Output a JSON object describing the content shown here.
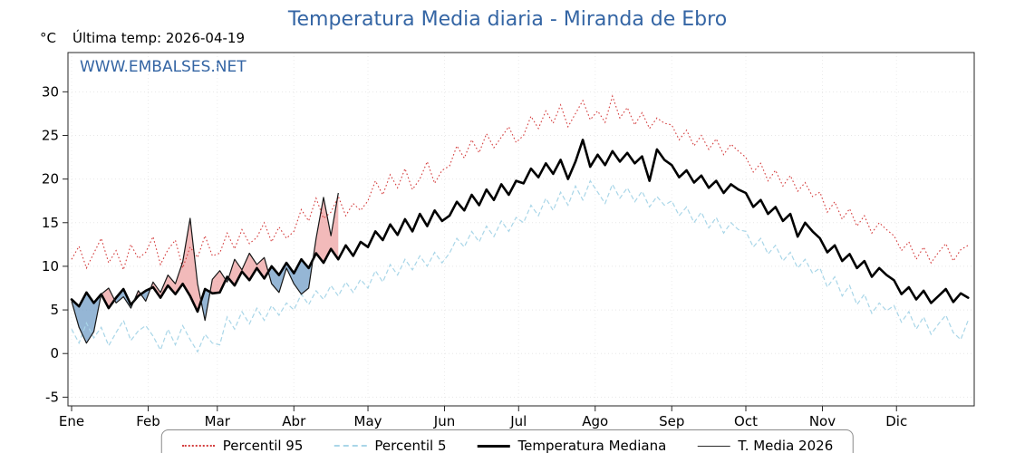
{
  "header": {
    "title": "Temperatura Media diaria - Miranda de Ebro",
    "y_unit": "°C",
    "last_temp_label": "Última temp: 2026-04-19",
    "watermark": "WWW.EMBALSES.NET"
  },
  "legend": {
    "items": [
      {
        "label": "Percentil 95",
        "style": "leg-dotted-red"
      },
      {
        "label": "Percentil 5",
        "style": "leg-dashed-blue"
      },
      {
        "label": "Temperatura Mediana",
        "style": "leg-solid-thick"
      },
      {
        "label": "T. Media 2026",
        "style": "leg-solid-thin"
      }
    ]
  },
  "chart_data": {
    "type": "line",
    "title": "Temperatura Media diaria - Miranda de Ebro",
    "xlabel": "",
    "ylabel": "°C",
    "ylim": [
      -6,
      34.5
    ],
    "yticks": [
      -5,
      0,
      5,
      10,
      15,
      20,
      25,
      30
    ],
    "x_months": [
      "Ene",
      "Feb",
      "Mar",
      "Abr",
      "May",
      "Jun",
      "Jul",
      "Ago",
      "Sep",
      "Oct",
      "Nov",
      "Dic"
    ],
    "month_start_days": [
      1,
      32,
      60,
      91,
      121,
      152,
      182,
      213,
      244,
      274,
      305,
      335
    ],
    "sample_step_days": 3,
    "grid": true,
    "legend_position": "bottom",
    "colors": {
      "p95": "#d43d3d",
      "p5": "#a9d6e8",
      "median": "#000000",
      "t2026": "#161616",
      "fill_above": "#e98c8c",
      "fill_below": "#5c8fbe",
      "title_blue": "#3465a4"
    },
    "series": [
      {
        "name": "Percentil 95",
        "style": "dotted",
        "values": [
          10.8,
          12.3,
          9.8,
          11.5,
          13.2,
          10.4,
          11.8,
          9.6,
          12.5,
          10.9,
          11.6,
          13.4,
          10.2,
          11.9,
          13.0,
          9.8,
          12.2,
          11.0,
          13.5,
          11.2,
          11.5,
          13.8,
          12.0,
          14.2,
          12.6,
          13.3,
          15.0,
          12.8,
          14.5,
          13.2,
          14.0,
          16.5,
          15.2,
          17.8,
          15.5,
          16.2,
          18.0,
          15.8,
          17.2,
          16.4,
          17.5,
          19.8,
          18.2,
          20.5,
          19.0,
          21.2,
          18.8,
          20.0,
          22.0,
          19.5,
          21.0,
          21.5,
          23.8,
          22.4,
          24.5,
          23.0,
          25.2,
          23.6,
          24.8,
          26.0,
          24.2,
          25.0,
          27.2,
          25.8,
          27.8,
          26.4,
          28.5,
          26.0,
          27.5,
          29.0,
          26.8,
          27.8,
          26.5,
          29.5,
          27.0,
          28.2,
          26.2,
          27.6,
          25.8,
          27.0,
          26.4,
          26.2,
          24.5,
          25.6,
          23.8,
          25.0,
          23.4,
          24.6,
          22.8,
          24.0,
          23.2,
          22.5,
          20.8,
          21.8,
          19.8,
          21.0,
          19.2,
          20.4,
          18.6,
          19.6,
          18.0,
          18.5,
          16.2,
          17.4,
          15.4,
          16.6,
          14.6,
          15.8,
          13.8,
          15.0,
          14.2,
          13.5,
          11.8,
          12.8,
          10.8,
          12.2,
          10.4,
          11.6,
          12.6,
          10.6,
          11.9,
          12.4
        ]
      },
      {
        "name": "Percentil 5",
        "style": "dashed",
        "values": [
          2.8,
          1.2,
          3.5,
          1.8,
          3.0,
          0.9,
          2.4,
          3.8,
          1.5,
          2.6,
          3.2,
          2.0,
          0.4,
          2.8,
          1.0,
          3.2,
          1.6,
          0.2,
          2.2,
          1.2,
          1.0,
          4.2,
          2.8,
          4.8,
          3.4,
          5.2,
          3.8,
          5.5,
          4.4,
          5.8,
          5.0,
          6.8,
          5.6,
          7.2,
          6.2,
          7.8,
          6.6,
          8.2,
          7.0,
          8.5,
          7.5,
          9.5,
          8.2,
          10.2,
          9.0,
          10.8,
          9.6,
          11.2,
          10.0,
          11.6,
          10.4,
          11.5,
          13.2,
          12.2,
          14.0,
          12.8,
          14.6,
          13.4,
          15.2,
          14.0,
          15.6,
          15.0,
          17.0,
          15.8,
          17.8,
          16.4,
          18.5,
          17.0,
          19.2,
          17.6,
          19.8,
          18.5,
          17.2,
          19.4,
          17.8,
          19.0,
          17.4,
          18.6,
          16.8,
          18.0,
          17.0,
          17.5,
          15.8,
          16.8,
          15.0,
          16.2,
          14.4,
          15.6,
          13.8,
          15.0,
          14.2,
          14.0,
          12.2,
          13.2,
          11.4,
          12.4,
          10.6,
          11.6,
          9.8,
          10.8,
          9.2,
          9.8,
          7.6,
          8.8,
          6.6,
          7.8,
          5.6,
          6.8,
          4.6,
          5.8,
          4.9,
          5.5,
          3.6,
          4.8,
          2.8,
          4.2,
          2.2,
          3.4,
          4.4,
          2.4,
          1.6,
          3.8
        ]
      },
      {
        "name": "Temperatura Mediana",
        "style": "solid-thick",
        "values": [
          6.2,
          5.4,
          7.0,
          5.8,
          6.8,
          5.2,
          6.4,
          7.4,
          5.6,
          6.6,
          7.2,
          7.6,
          6.4,
          7.8,
          6.8,
          8.0,
          6.6,
          4.8,
          7.4,
          6.9,
          7.0,
          8.8,
          7.8,
          9.4,
          8.4,
          9.8,
          8.6,
          10.0,
          9.0,
          10.4,
          9.2,
          10.8,
          9.8,
          11.5,
          10.4,
          12.0,
          10.8,
          12.4,
          11.2,
          12.8,
          12.2,
          14.0,
          13.0,
          14.8,
          13.6,
          15.4,
          14.0,
          16.0,
          14.6,
          16.4,
          15.2,
          15.8,
          17.4,
          16.4,
          18.2,
          17.0,
          18.8,
          17.6,
          19.4,
          18.2,
          19.8,
          19.5,
          21.2,
          20.2,
          21.8,
          20.6,
          22.2,
          20.0,
          22.0,
          24.5,
          21.4,
          22.8,
          21.6,
          23.2,
          22.0,
          23.0,
          21.8,
          22.6,
          19.8,
          23.4,
          22.2,
          21.6,
          20.2,
          21.0,
          19.6,
          20.4,
          19.0,
          19.8,
          18.4,
          19.4,
          18.8,
          18.4,
          16.8,
          17.6,
          16.0,
          16.8,
          15.2,
          16.0,
          13.4,
          15.0,
          14.0,
          13.2,
          11.6,
          12.4,
          10.6,
          11.4,
          9.8,
          10.6,
          8.8,
          9.8,
          9.0,
          8.4,
          6.8,
          7.6,
          6.2,
          7.2,
          5.8,
          6.6,
          7.4,
          5.9,
          6.9,
          6.4
        ]
      },
      {
        "name": "T. Media 2026",
        "style": "solid-thin",
        "end_day": 109,
        "values": [
          6.0,
          3.0,
          1.2,
          2.5,
          6.8,
          7.5,
          5.8,
          6.5,
          5.2,
          7.2,
          6.0,
          8.2,
          7.0,
          9.0,
          8.0,
          10.5,
          15.5,
          8.0,
          3.8,
          8.5,
          9.5,
          8.2,
          10.8,
          9.6,
          11.5,
          10.2,
          11.0,
          8.0,
          7.0,
          9.8,
          8.0,
          6.8,
          7.5,
          13.2,
          17.9,
          13.5,
          18.4
        ]
      }
    ]
  }
}
